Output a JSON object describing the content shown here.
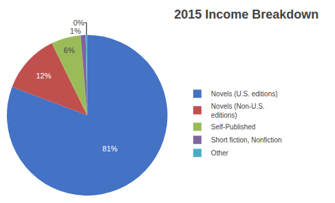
{
  "chart_data": {
    "type": "pie",
    "title": "2015 Income Breakdown",
    "categories": [
      "Novels (U.S. editions)",
      "Novels (Non-U.S.\neditions)",
      "Self-Published",
      "Short fiction, Nonfiction",
      "Other"
    ],
    "values": [
      81,
      12,
      6,
      1,
      0.3
    ],
    "value_labels": [
      "81%",
      "12%",
      "6%",
      "1%",
      "0%"
    ],
    "colors": [
      "#4472C4",
      "#C0504D",
      "#9BBB59",
      "#8064A2",
      "#4BACC6"
    ],
    "data_labels": true,
    "legend": "right"
  }
}
